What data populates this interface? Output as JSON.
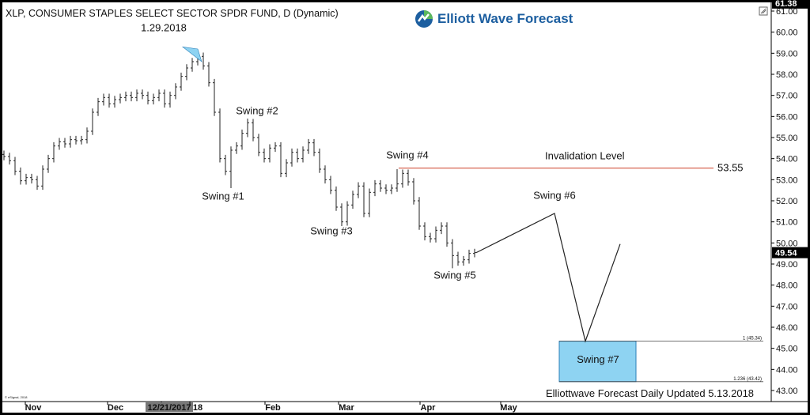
{
  "header": {
    "title": "XLP, CONSUMER STAPLES SELECT SECTOR SPDR FUND, D (Dynamic)",
    "logo_text": "Elliott Wave Forecast"
  },
  "footer": {
    "updated": "Elliottwave Forecast Daily Updated 5.13.2018",
    "small_credit": "© eSignal, 2018"
  },
  "colors": {
    "background": "#ffffff",
    "frame": "#000000",
    "bars": "#222222",
    "invalidation_line": "#d2553f",
    "target_box_fill": "#8ed3f2",
    "target_box_border": "#2a7fb8",
    "marker_triangle": "#8ed3f2",
    "logo_blue": "#1d5fa0",
    "logo_green": "#5cb85c"
  },
  "chart_data": {
    "type": "ohlc",
    "ylim": [
      42.7,
      61.5
    ],
    "y_ticks": [
      "43.00",
      "44.00",
      "45.00",
      "46.00",
      "47.00",
      "48.00",
      "49.00",
      "50.00",
      "51.00",
      "52.00",
      "53.00",
      "54.00",
      "55.00",
      "56.00",
      "57.00",
      "58.00",
      "59.00",
      "60.00",
      "61.00"
    ],
    "top_price_badge": "61.38",
    "last_price_badge": "49.54",
    "x_labels": [
      "Nov",
      "Dec",
      "12/21/2017",
      "18",
      "Feb",
      "Mar",
      "Apr",
      "May"
    ],
    "highlighted_date": "12/21/2017",
    "closes": [
      54.1,
      53.9,
      53.4,
      52.95,
      53.1,
      53.0,
      52.7,
      53.5,
      54.0,
      54.6,
      54.8,
      54.7,
      54.9,
      54.85,
      54.9,
      55.3,
      56.2,
      56.7,
      56.9,
      56.6,
      56.8,
      56.9,
      57.0,
      56.9,
      57.1,
      57.0,
      56.75,
      56.9,
      57.1,
      56.6,
      57.0,
      57.4,
      57.9,
      58.3,
      58.6,
      58.85,
      58.4,
      57.6,
      56.2,
      54.0,
      53.4,
      54.4,
      54.6,
      55.2,
      55.7,
      55.0,
      54.3,
      54.0,
      54.5,
      54.6,
      53.3,
      53.8,
      54.3,
      54.0,
      54.4,
      54.75,
      54.3,
      53.5,
      53.0,
      52.5,
      51.7,
      51.0,
      51.8,
      52.3,
      52.7,
      51.4,
      52.4,
      52.8,
      52.6,
      52.5,
      52.6,
      52.8,
      53.3,
      52.9,
      52.0,
      50.8,
      50.3,
      50.2,
      50.6,
      50.8,
      50.0,
      49.4,
      49.1,
      49.2,
      49.5,
      49.54
    ],
    "swing_labels": [
      {
        "text": "1.29.2018",
        "date_index": 36
      },
      {
        "text": "Swing #1",
        "date_index": 41
      },
      {
        "text": "Swing #2",
        "date_index": 44
      },
      {
        "text": "Swing #3",
        "date_index": 61
      },
      {
        "text": "Swing #4",
        "date_index": 71
      },
      {
        "text": "Swing #5",
        "date_index": 81
      },
      {
        "text": "Swing #6",
        "price": 51.4
      },
      {
        "text": "Swing #7",
        "price_range": [
          43.4,
          45.34
        ]
      }
    ],
    "invalidation": {
      "label": "Invalidation Level",
      "value": 53.55,
      "value_label": "53.55"
    },
    "projection": {
      "points": [
        49.54,
        51.4,
        45.34,
        49.95
      ]
    },
    "fib_levels": [
      {
        "label": "1 (45.34)",
        "value": 45.34
      },
      {
        "label": "1.236 (43.42)",
        "value": 43.42
      }
    ]
  }
}
